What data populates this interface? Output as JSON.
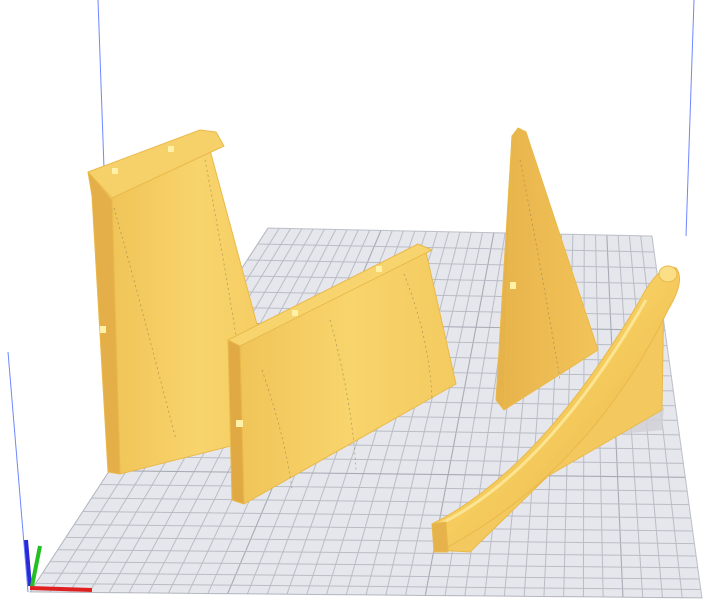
{
  "viewport": {
    "background_color": "#ffffff",
    "bed_color": "#e6e7ec",
    "grid_color": "#b9bdc6",
    "build_volume_line_color": "#6f87ff"
  },
  "models": {
    "part_color": "#f7d26a",
    "part_shadow_color": "#e8b64e",
    "part_highlight_color": "#fbe28d",
    "count": 4
  },
  "axis_gizmo": {
    "x_color": "#e02020",
    "y_color": "#22c022",
    "z_color": "#2a2ad8"
  }
}
